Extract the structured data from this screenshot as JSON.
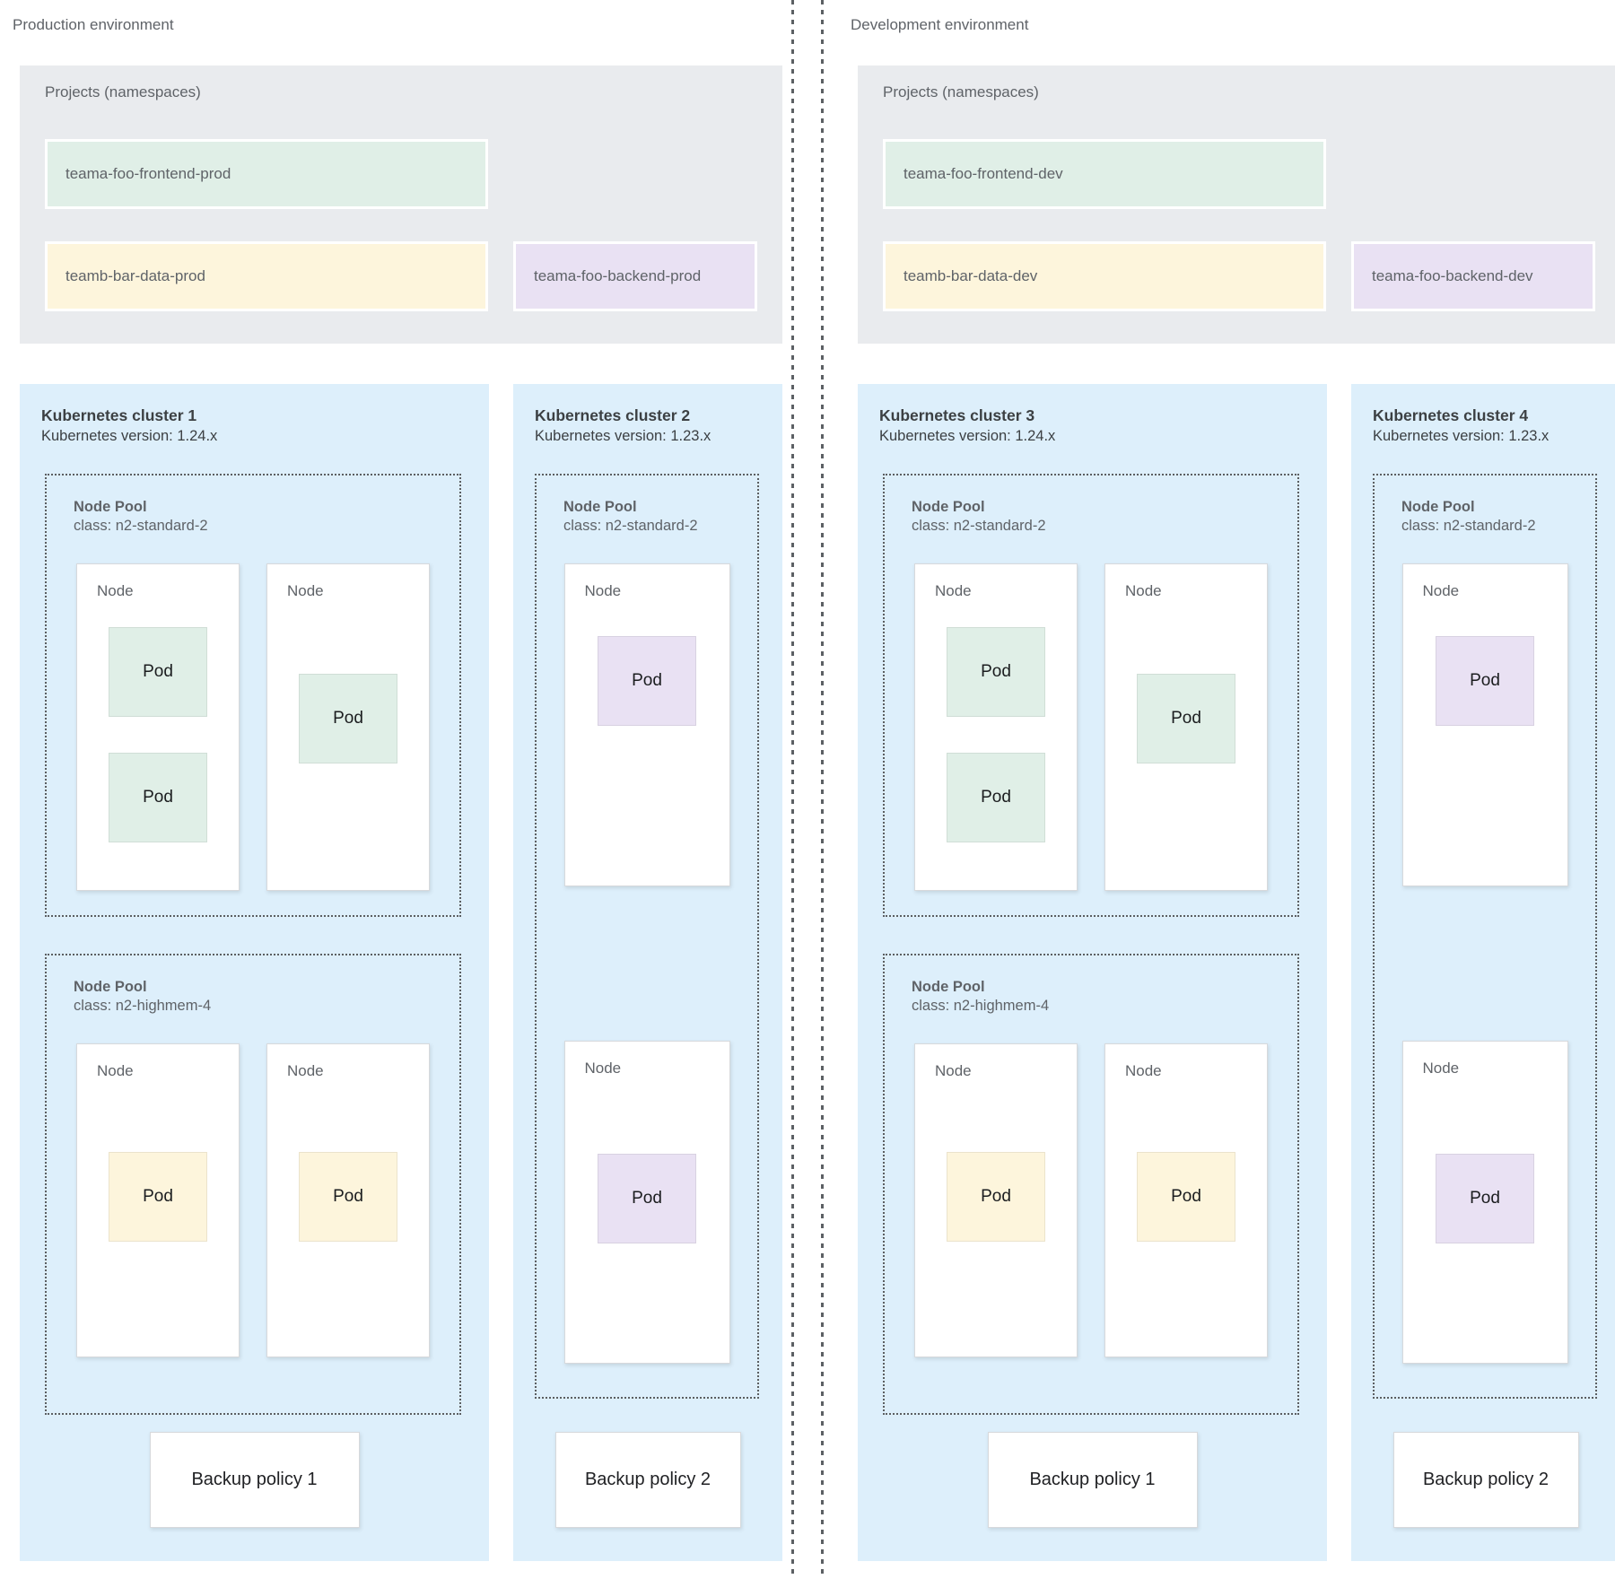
{
  "colors": {
    "green": "#e0efe7",
    "yellow": "#fdf5dc",
    "purple": "#e9e1f3",
    "cluster_bg": "#ddeffb",
    "projects_bg": "#e9ebee"
  },
  "environments": [
    {
      "label": "Production environment",
      "projects": {
        "title": "Projects (namespaces)",
        "namespaces": [
          {
            "name": "teama-foo-frontend-prod",
            "color": "green"
          },
          {
            "name": "teamb-bar-data-prod",
            "color": "yellow"
          },
          {
            "name": "teama-foo-backend-prod",
            "color": "purple"
          }
        ]
      },
      "clusters": [
        {
          "title": "Kubernetes cluster 1",
          "version": "Kubernetes version: 1.24.x",
          "backup_policy": "Backup policy 1",
          "pools": [
            {
              "title": "Node Pool",
              "class": "class: n2-standard-2",
              "nodes": [
                {
                  "label": "Node",
                  "pods": [
                    {
                      "label": "Pod",
                      "color": "green"
                    },
                    {
                      "label": "Pod",
                      "color": "green"
                    }
                  ]
                },
                {
                  "label": "Node",
                  "pods": [
                    {
                      "label": "Pod",
                      "color": "green"
                    }
                  ]
                }
              ]
            },
            {
              "title": "Node Pool",
              "class": "class: n2-highmem-4",
              "nodes": [
                {
                  "label": "Node",
                  "pods": [
                    {
                      "label": "Pod",
                      "color": "yellow"
                    }
                  ]
                },
                {
                  "label": "Node",
                  "pods": [
                    {
                      "label": "Pod",
                      "color": "yellow"
                    }
                  ]
                }
              ]
            }
          ]
        },
        {
          "title": "Kubernetes cluster 2",
          "version": "Kubernetes version: 1.23.x",
          "backup_policy": "Backup policy 2",
          "pools": [
            {
              "title": "Node Pool",
              "class": "class: n2-standard-2",
              "nodes": [
                {
                  "label": "Node",
                  "pods": [
                    {
                      "label": "Pod",
                      "color": "purple"
                    }
                  ]
                },
                {
                  "label": "Node",
                  "pods": [
                    {
                      "label": "Pod",
                      "color": "purple"
                    }
                  ]
                }
              ]
            }
          ]
        }
      ]
    },
    {
      "label": "Development environment",
      "projects": {
        "title": "Projects (namespaces)",
        "namespaces": [
          {
            "name": "teama-foo-frontend-dev",
            "color": "green"
          },
          {
            "name": "teamb-bar-data-dev",
            "color": "yellow"
          },
          {
            "name": "teama-foo-backend-dev",
            "color": "purple"
          }
        ]
      },
      "clusters": [
        {
          "title": "Kubernetes cluster 3",
          "version": "Kubernetes version: 1.24.x",
          "backup_policy": "Backup policy 1",
          "pools": [
            {
              "title": "Node Pool",
              "class": "class: n2-standard-2",
              "nodes": [
                {
                  "label": "Node",
                  "pods": [
                    {
                      "label": "Pod",
                      "color": "green"
                    },
                    {
                      "label": "Pod",
                      "color": "green"
                    }
                  ]
                },
                {
                  "label": "Node",
                  "pods": [
                    {
                      "label": "Pod",
                      "color": "green"
                    }
                  ]
                }
              ]
            },
            {
              "title": "Node Pool",
              "class": "class: n2-highmem-4",
              "nodes": [
                {
                  "label": "Node",
                  "pods": [
                    {
                      "label": "Pod",
                      "color": "yellow"
                    }
                  ]
                },
                {
                  "label": "Node",
                  "pods": [
                    {
                      "label": "Pod",
                      "color": "yellow"
                    }
                  ]
                }
              ]
            }
          ]
        },
        {
          "title": "Kubernetes cluster 4",
          "version": "Kubernetes version: 1.23.x",
          "backup_policy": "Backup policy 2",
          "pools": [
            {
              "title": "Node Pool",
              "class": "class: n2-standard-2",
              "nodes": [
                {
                  "label": "Node",
                  "pods": [
                    {
                      "label": "Pod",
                      "color": "purple"
                    }
                  ]
                },
                {
                  "label": "Node",
                  "pods": [
                    {
                      "label": "Pod",
                      "color": "purple"
                    }
                  ]
                }
              ]
            }
          ]
        }
      ]
    }
  ]
}
